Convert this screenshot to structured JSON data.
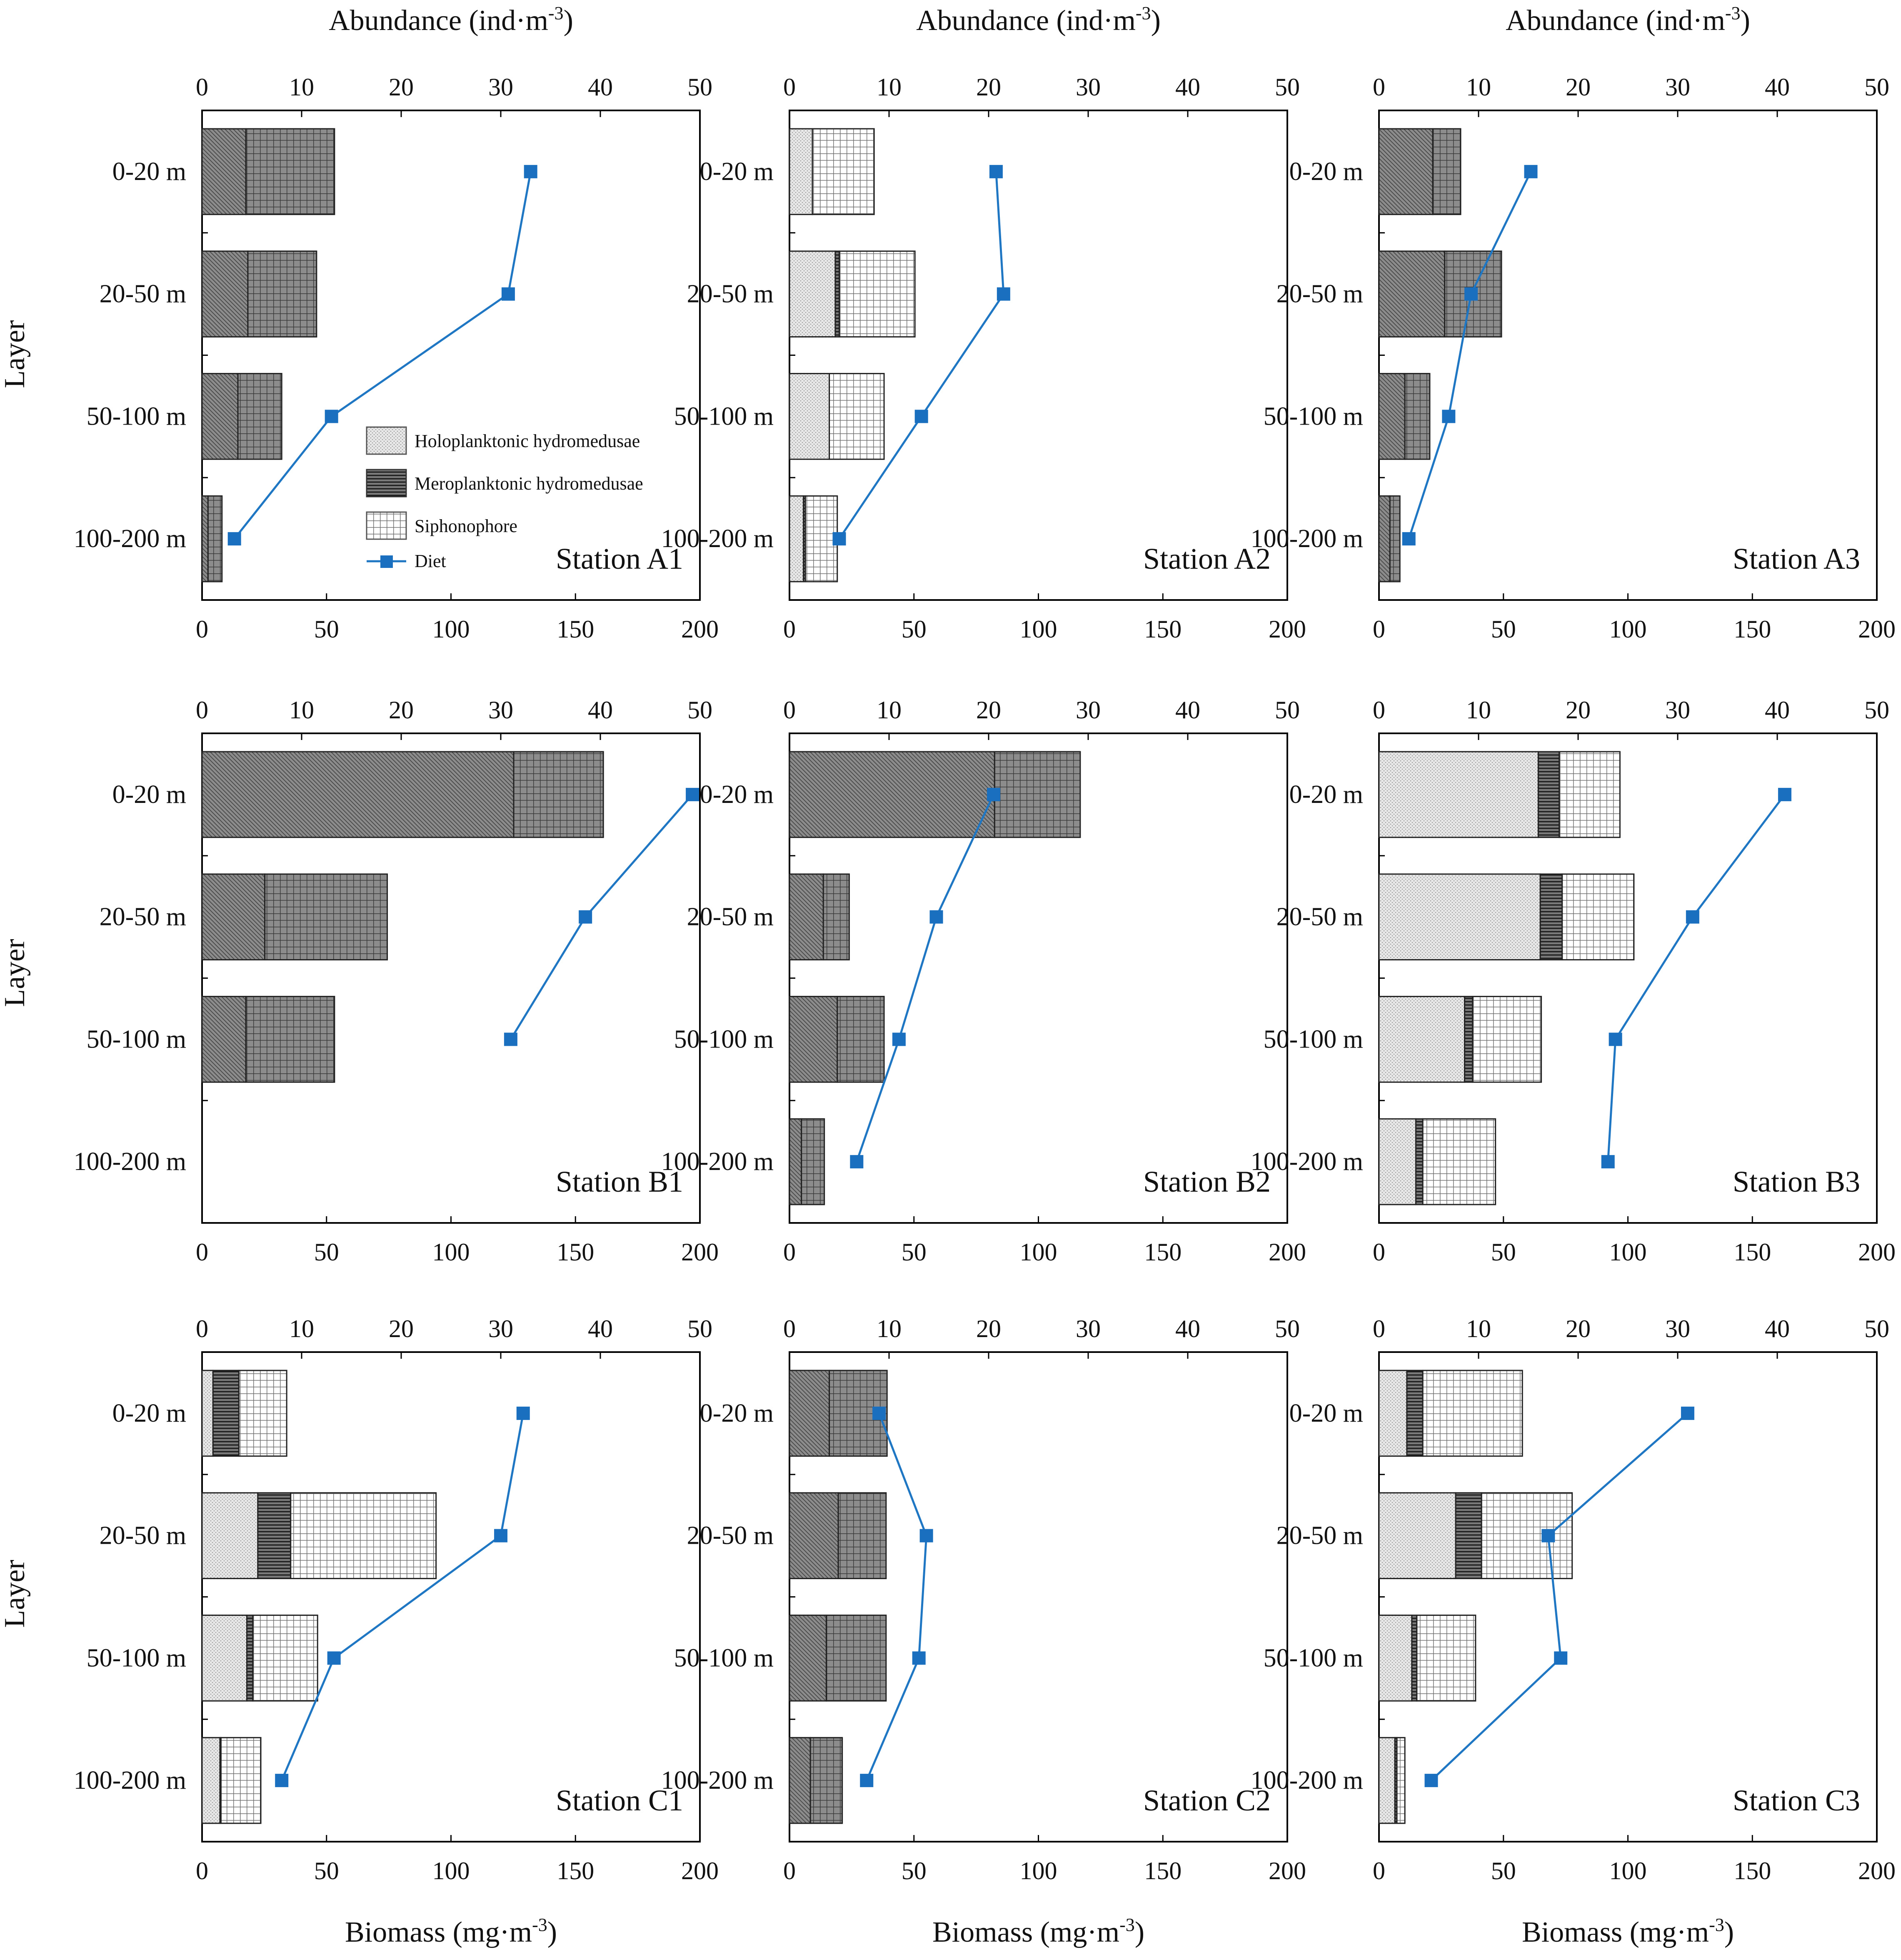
{
  "figure": {
    "abundance_axis_label": "Abundance (ind·m",
    "biomass_axis_label": "Biomass (mg·m",
    "unit_superscript": "-3",
    "unit_close": ")",
    "layer_axis_label": "Layer"
  },
  "legend": {
    "holo": "Holoplanktonic hydromedusae",
    "mero": "Meroplanktonic hydromedusae",
    "siph": "Siphonophore",
    "diet": "Diet"
  },
  "colors": {
    "diet_line": "#1f77c4",
    "diet_marker": "#1a6fbf",
    "mero_fill": "#8c8c8c",
    "holo_fill": "#e6e6e6",
    "axis": "#000000"
  },
  "chart_data": [
    {
      "type": "bar",
      "title": "Station A1",
      "categories": [
        "0-20 m",
        "20-50 m",
        "50-100 m",
        "100-200 m"
      ],
      "abundance_xlim": [
        0,
        50
      ],
      "biomass_xlim": [
        0,
        200
      ],
      "abundance_ticks": [
        0,
        10,
        20,
        30,
        40,
        50
      ],
      "biomass_ticks": [
        0,
        50,
        100,
        150,
        200
      ],
      "bars": {
        "axis": "abundance",
        "series": [
          {
            "name": "Meroplanktonic hydromedusae",
            "values": [
              4.4,
              4.6,
              3.6,
              0.6
            ]
          },
          {
            "name": "Holoplanktonic hydromedusae",
            "values": [
              0,
              0,
              0,
              0
            ]
          },
          {
            "name": "Siphonophore",
            "values": [
              8.9,
              6.9,
              4.4,
              1.4
            ]
          }
        ]
      },
      "diet": {
        "name": "Diet",
        "axis": "biomass",
        "values": [
          132,
          123,
          52,
          13
        ]
      }
    },
    {
      "type": "bar",
      "title": "Station A2",
      "categories": [
        "0-20 m",
        "20-50 m",
        "50-100 m",
        "100-200 m"
      ],
      "abundance_xlim": [
        0,
        50
      ],
      "biomass_xlim": [
        0,
        200
      ],
      "abundance_ticks": [
        0,
        10,
        20,
        30,
        40,
        50
      ],
      "biomass_ticks": [
        0,
        50,
        100,
        150,
        200
      ],
      "bars": {
        "axis": "abundance",
        "series": [
          {
            "name": "Meroplanktonic hydromedusae",
            "values": [
              0,
              0.4,
              0,
              0.2
            ]
          },
          {
            "name": "Holoplanktonic hydromedusae",
            "values": [
              2.3,
              4.6,
              4.0,
              1.4
            ]
          },
          {
            "name": "Siphonophore",
            "values": [
              6.2,
              7.6,
              5.5,
              3.2
            ]
          }
        ]
      },
      "diet": {
        "name": "Diet",
        "axis": "biomass",
        "values": [
          83,
          86,
          53,
          20
        ]
      }
    },
    {
      "type": "bar",
      "title": "Station A3",
      "categories": [
        "0-20 m",
        "20-50 m",
        "50-100 m",
        "100-200 m"
      ],
      "abundance_xlim": [
        0,
        50
      ],
      "biomass_xlim": [
        0,
        200
      ],
      "abundance_ticks": [
        0,
        10,
        20,
        30,
        40,
        50
      ],
      "biomass_ticks": [
        0,
        50,
        100,
        150,
        200
      ],
      "bars": {
        "axis": "abundance",
        "series": [
          {
            "name": "Meroplanktonic hydromedusae",
            "values": [
              5.4,
              6.6,
              2.6,
              1.1
            ]
          },
          {
            "name": "Holoplanktonic hydromedusae",
            "values": [
              0,
              0,
              0,
              0
            ]
          },
          {
            "name": "Siphonophore",
            "values": [
              2.8,
              5.7,
              2.5,
              1.0
            ]
          }
        ]
      },
      "diet": {
        "name": "Diet",
        "axis": "biomass",
        "values": [
          61,
          37,
          28,
          12
        ]
      }
    },
    {
      "type": "bar",
      "title": "Station B1",
      "categories": [
        "0-20 m",
        "20-50 m",
        "50-100 m",
        "100-200 m"
      ],
      "abundance_xlim": [
        0,
        50
      ],
      "biomass_xlim": [
        0,
        200
      ],
      "abundance_ticks": [
        0,
        10,
        20,
        30,
        40,
        50
      ],
      "biomass_ticks": [
        0,
        50,
        100,
        150,
        200
      ],
      "bars": {
        "axis": "abundance",
        "series": [
          {
            "name": "Meroplanktonic hydromedusae",
            "values": [
              31.3,
              6.3,
              4.4,
              0
            ]
          },
          {
            "name": "Holoplanktonic hydromedusae",
            "values": [
              0,
              0,
              0,
              0
            ]
          },
          {
            "name": "Siphonophore",
            "values": [
              9.0,
              12.3,
              8.9,
              0
            ]
          }
        ]
      },
      "diet": {
        "name": "Diet",
        "axis": "biomass",
        "values": [
          197,
          154,
          124,
          null
        ]
      }
    },
    {
      "type": "bar",
      "title": "Station B2",
      "categories": [
        "0-20 m",
        "20-50 m",
        "50-100 m",
        "100-200 m"
      ],
      "abundance_xlim": [
        0,
        50
      ],
      "biomass_xlim": [
        0,
        200
      ],
      "abundance_ticks": [
        0,
        10,
        20,
        30,
        40,
        50
      ],
      "biomass_ticks": [
        0,
        50,
        100,
        150,
        200
      ],
      "bars": {
        "axis": "abundance",
        "series": [
          {
            "name": "Meroplanktonic hydromedusae",
            "values": [
              20.6,
              3.4,
              4.8,
              1.2
            ]
          },
          {
            "name": "Holoplanktonic hydromedusae",
            "values": [
              0,
              0,
              0,
              0
            ]
          },
          {
            "name": "Siphonophore",
            "values": [
              8.6,
              2.6,
              4.7,
              2.3
            ]
          }
        ]
      },
      "diet": {
        "name": "Diet",
        "axis": "biomass",
        "values": [
          82,
          59,
          44,
          27
        ]
      }
    },
    {
      "type": "bar",
      "title": "Station B3",
      "categories": [
        "0-20 m",
        "20-50 m",
        "50-100 m",
        "100-200 m"
      ],
      "abundance_xlim": [
        0,
        50
      ],
      "biomass_xlim": [
        0,
        200
      ],
      "abundance_ticks": [
        0,
        10,
        20,
        30,
        40,
        50
      ],
      "biomass_ticks": [
        0,
        50,
        100,
        150,
        200
      ],
      "bars": {
        "axis": "abundance",
        "series": [
          {
            "name": "Meroplanktonic hydromedusae",
            "values": [
              2.1,
              2.2,
              0.8,
              0.7
            ]
          },
          {
            "name": "Holoplanktonic hydromedusae",
            "values": [
              16.0,
              16.2,
              8.6,
              3.7
            ]
          },
          {
            "name": "Siphonophore",
            "values": [
              6.1,
              7.2,
              6.9,
              7.3
            ]
          }
        ]
      },
      "diet": {
        "name": "Diet",
        "axis": "biomass",
        "values": [
          163,
          126,
          95,
          92
        ]
      }
    },
    {
      "type": "bar",
      "title": "Station C1",
      "categories": [
        "0-20 m",
        "20-50 m",
        "50-100 m",
        "100-200 m"
      ],
      "abundance_xlim": [
        0,
        50
      ],
      "biomass_xlim": [
        0,
        200
      ],
      "abundance_ticks": [
        0,
        10,
        20,
        30,
        40,
        50
      ],
      "biomass_ticks": [
        0,
        50,
        100,
        150,
        200
      ],
      "bars": {
        "axis": "abundance",
        "series": [
          {
            "name": "Meroplanktonic hydromedusae",
            "values": [
              2.6,
              3.3,
              0.6,
              0.1
            ]
          },
          {
            "name": "Holoplanktonic hydromedusae",
            "values": [
              1.1,
              5.6,
              4.5,
              1.8
            ]
          },
          {
            "name": "Siphonophore",
            "values": [
              4.8,
              14.6,
              6.5,
              4.0
            ]
          }
        ]
      },
      "diet": {
        "name": "Diet",
        "axis": "biomass",
        "values": [
          129,
          120,
          53,
          32
        ]
      }
    },
    {
      "type": "bar",
      "title": "Station C2",
      "categories": [
        "0-20 m",
        "20-50 m",
        "50-100 m",
        "100-200 m"
      ],
      "abundance_xlim": [
        0,
        50
      ],
      "biomass_xlim": [
        0,
        200
      ],
      "abundance_ticks": [
        0,
        10,
        20,
        30,
        40,
        50
      ],
      "biomass_ticks": [
        0,
        50,
        100,
        150,
        200
      ],
      "bars": {
        "axis": "abundance",
        "series": [
          {
            "name": "Meroplanktonic hydromedusae",
            "values": [
              4.0,
              4.9,
              3.7,
              2.1
            ]
          },
          {
            "name": "Holoplanktonic hydromedusae",
            "values": [
              0,
              0,
              0,
              0
            ]
          },
          {
            "name": "Siphonophore",
            "values": [
              5.8,
              4.8,
              6.0,
              3.2
            ]
          }
        ]
      },
      "diet": {
        "name": "Diet",
        "axis": "biomass",
        "values": [
          36,
          55,
          52,
          31
        ]
      }
    },
    {
      "type": "bar",
      "title": "Station C3",
      "categories": [
        "0-20 m",
        "20-50 m",
        "50-100 m",
        "100-200 m"
      ],
      "abundance_xlim": [
        0,
        50
      ],
      "biomass_xlim": [
        0,
        200
      ],
      "abundance_ticks": [
        0,
        10,
        20,
        30,
        40,
        50
      ],
      "biomass_ticks": [
        0,
        50,
        100,
        150,
        200
      ],
      "bars": {
        "axis": "abundance",
        "series": [
          {
            "name": "Meroplanktonic hydromedusae",
            "values": [
              1.6,
              2.6,
              0.5,
              0.2
            ]
          },
          {
            "name": "Holoplanktonic hydromedusae",
            "values": [
              2.8,
              7.7,
              3.3,
              1.6
            ]
          },
          {
            "name": "Siphonophore",
            "values": [
              10.0,
              9.1,
              5.9,
              0.8
            ]
          }
        ]
      },
      "diet": {
        "name": "Diet",
        "axis": "biomass",
        "values": [
          124,
          68,
          73,
          21
        ]
      }
    }
  ]
}
